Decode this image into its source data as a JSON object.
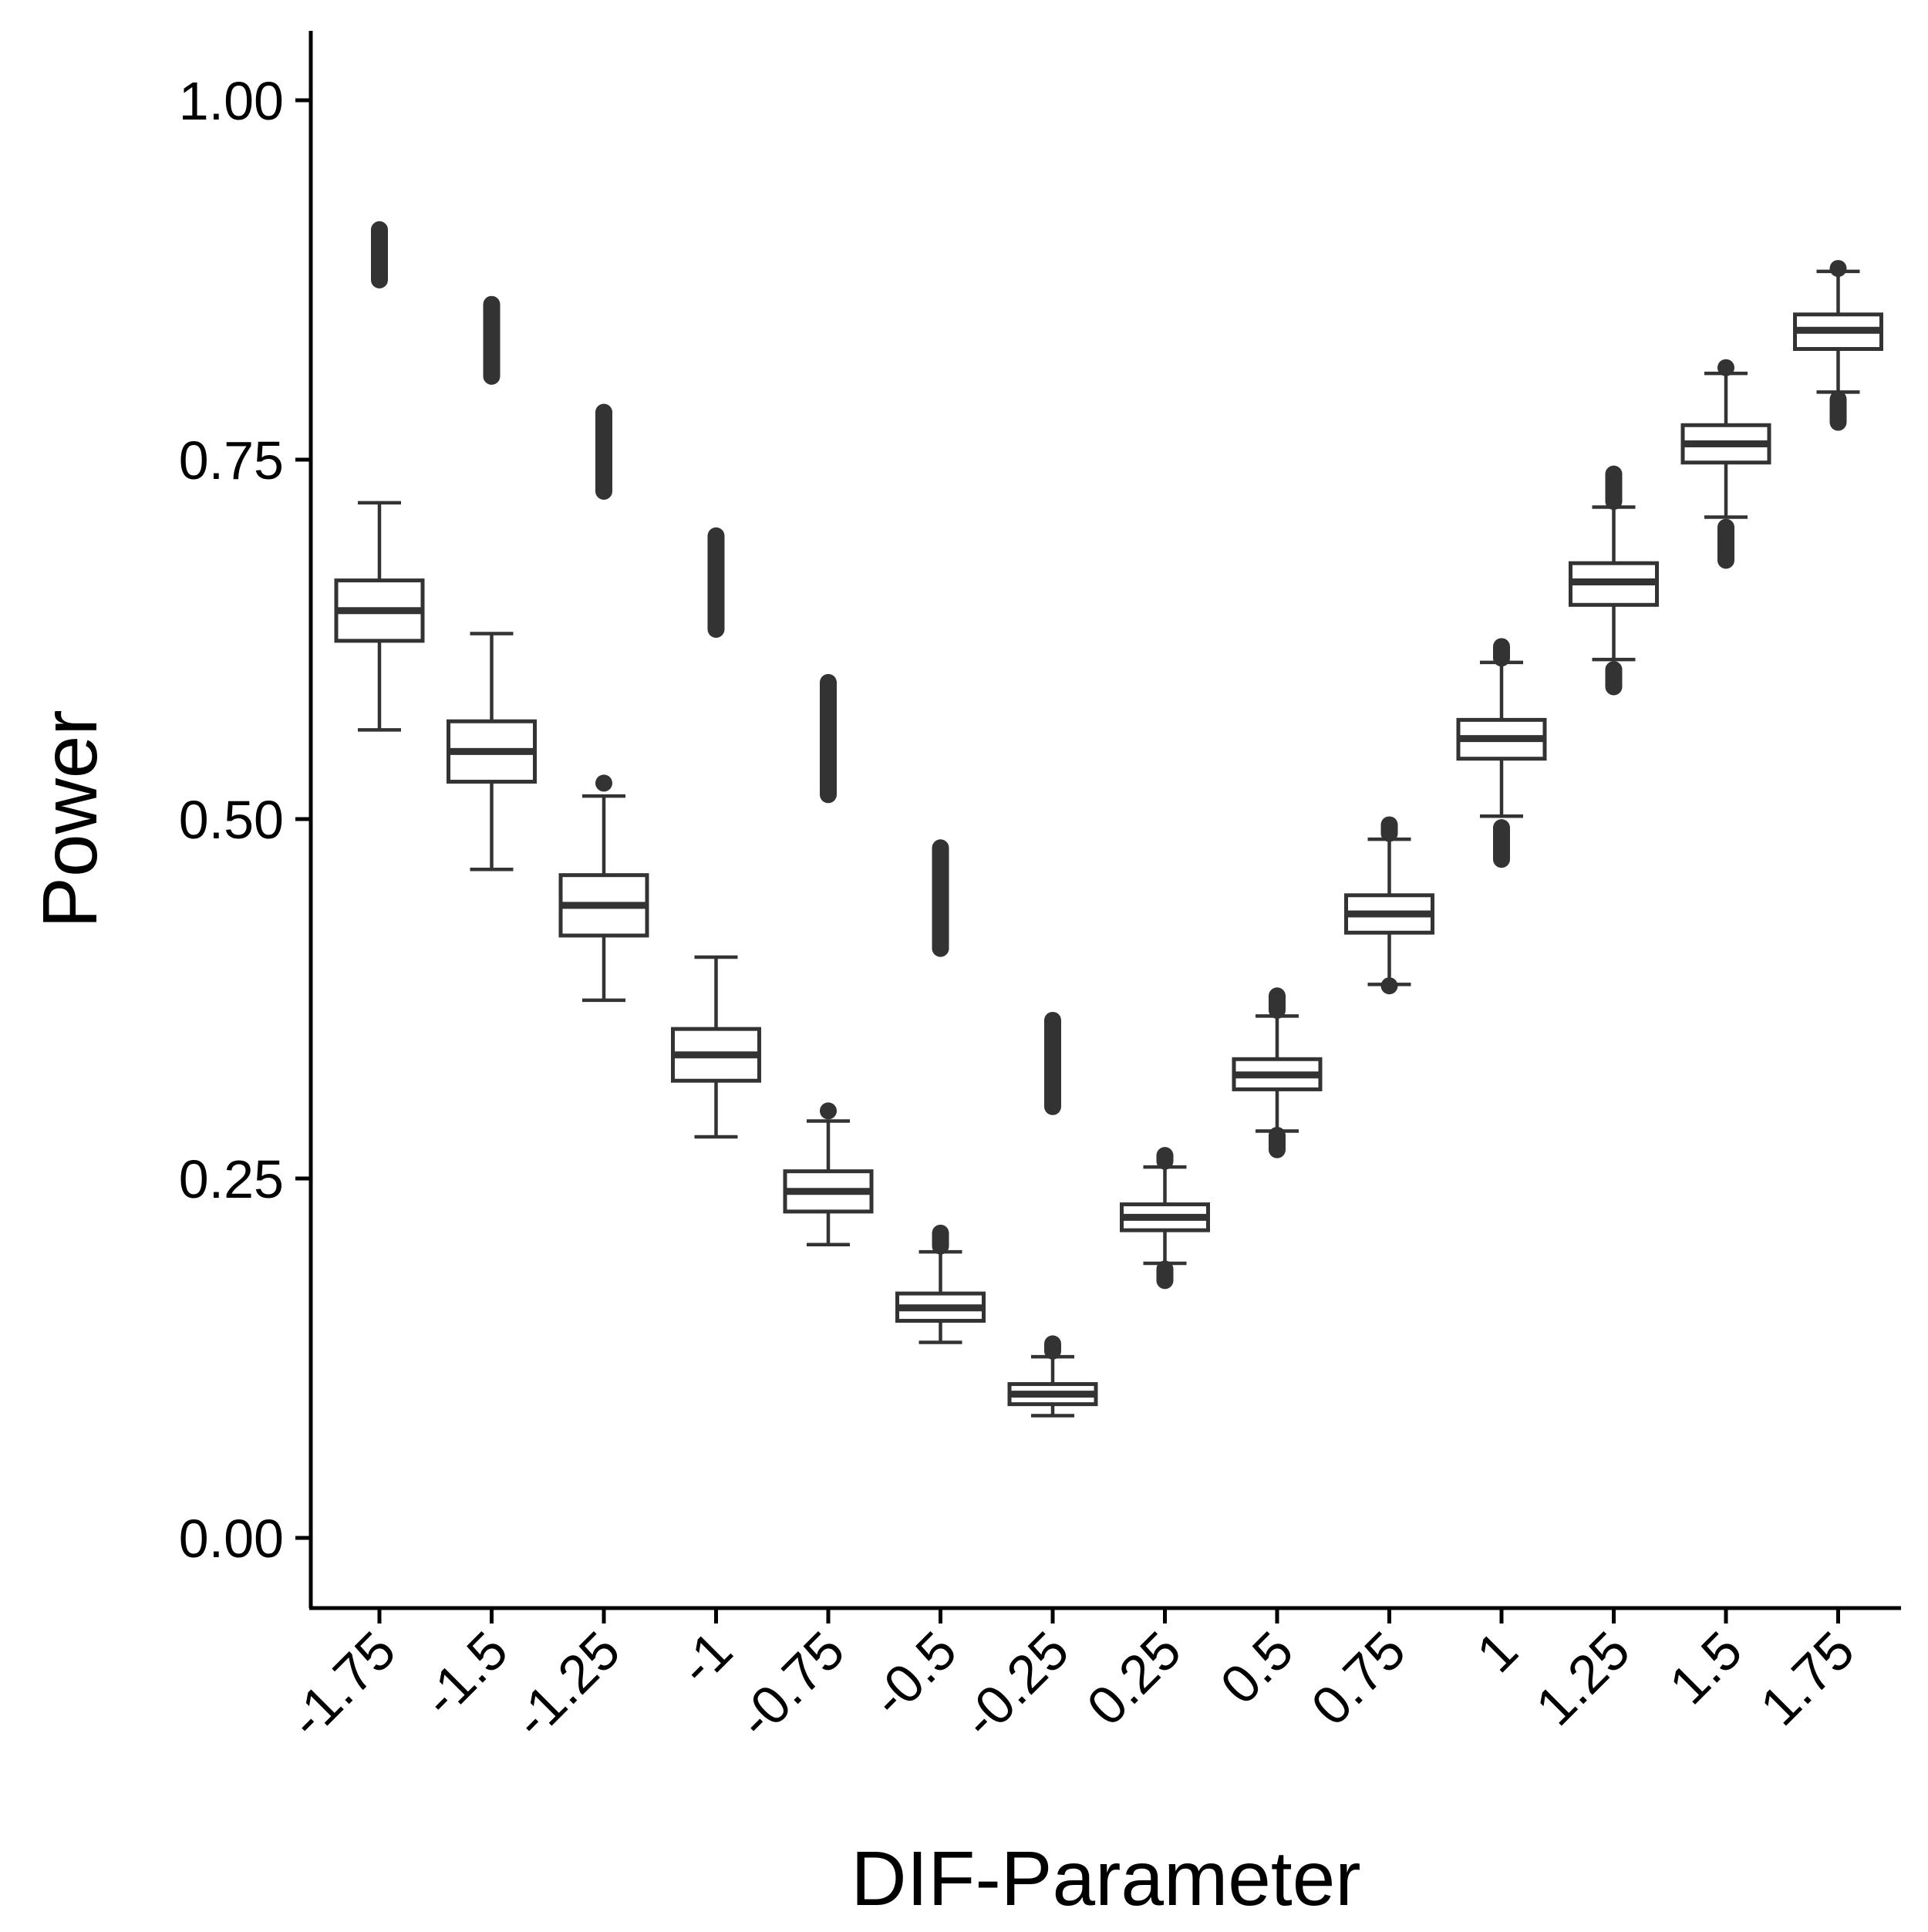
{
  "chart_data": {
    "type": "boxplot",
    "title": "",
    "xlabel": "DIF-Parameter",
    "ylabel": "Power",
    "ylim": [
      -0.05,
      1.05
    ],
    "yticks": [
      "0.00",
      "0.25",
      "0.50",
      "0.75",
      "1.00"
    ],
    "grid": false,
    "legend": "none",
    "categories": [
      "-1.75",
      "-1.5",
      "-1.25",
      "-1",
      "-0.75",
      "-0.5",
      "-0.25",
      "0.25",
      "0.5",
      "0.75",
      "1",
      "1.25",
      "1.5",
      "1.75"
    ],
    "boxes": [
      {
        "x": "-1.75",
        "whisker_low": 0.562,
        "q1": 0.624,
        "median": 0.645,
        "q3": 0.666,
        "whisker_high": 0.72,
        "outlier_low": null,
        "outlier_high": null,
        "outlier_band": [
          0.875,
          0.91
        ]
      },
      {
        "x": "-1.5",
        "whisker_low": 0.465,
        "q1": 0.526,
        "median": 0.547,
        "q3": 0.568,
        "whisker_high": 0.629,
        "outlier_low": null,
        "outlier_high": null,
        "outlier_band": [
          0.808,
          0.858
        ]
      },
      {
        "x": "-1.25",
        "whisker_low": 0.374,
        "q1": 0.419,
        "median": 0.44,
        "q3": 0.461,
        "whisker_high": 0.516,
        "outlier_low": null,
        "outlier_high": [
          0.525,
          0.525
        ],
        "outlier_band": [
          0.728,
          0.783
        ]
      },
      {
        "x": "-1",
        "whisker_low": 0.279,
        "q1": 0.318,
        "median": 0.336,
        "q3": 0.354,
        "whisker_high": 0.404,
        "outlier_low": null,
        "outlier_high": null,
        "outlier_band": [
          0.632,
          0.697
        ]
      },
      {
        "x": "-0.75",
        "whisker_low": 0.204,
        "q1": 0.227,
        "median": 0.241,
        "q3": 0.255,
        "whisker_high": 0.29,
        "outlier_low": null,
        "outlier_high": [
          0.297,
          0.297
        ],
        "outlier_band": [
          0.517,
          0.595
        ]
      },
      {
        "x": "-0.5",
        "whisker_low": 0.136,
        "q1": 0.151,
        "median": 0.16,
        "q3": 0.17,
        "whisker_high": 0.199,
        "outlier_low": null,
        "outlier_high": [
          0.203,
          0.212
        ],
        "outlier_band": [
          0.41,
          0.48
        ]
      },
      {
        "x": "-0.25",
        "whisker_low": 0.085,
        "q1": 0.093,
        "median": 0.1,
        "q3": 0.107,
        "whisker_high": 0.126,
        "outlier_low": null,
        "outlier_high": [
          0.13,
          0.135
        ],
        "outlier_band": [
          0.3,
          0.36
        ]
      },
      {
        "x": "0.25",
        "whisker_low": 0.191,
        "q1": 0.214,
        "median": 0.223,
        "q3": 0.232,
        "whisker_high": 0.258,
        "outlier_low": [
          0.179,
          0.187
        ],
        "outlier_high": [
          0.262,
          0.266
        ],
        "outlier_band": null
      },
      {
        "x": "0.5",
        "whisker_low": 0.283,
        "q1": 0.312,
        "median": 0.322,
        "q3": 0.333,
        "whisker_high": 0.363,
        "outlier_low": [
          0.27,
          0.28
        ],
        "outlier_high": [
          0.367,
          0.377
        ],
        "outlier_band": null
      },
      {
        "x": "0.75",
        "whisker_low": 0.385,
        "q1": 0.421,
        "median": 0.434,
        "q3": 0.447,
        "whisker_high": 0.486,
        "outlier_low": [
          0.384,
          0.384
        ],
        "outlier_high": [
          0.49,
          0.496
        ],
        "outlier_band": null
      },
      {
        "x": "1",
        "whisker_low": 0.502,
        "q1": 0.542,
        "median": 0.556,
        "q3": 0.569,
        "whisker_high": 0.609,
        "outlier_low": [
          0.472,
          0.494
        ],
        "outlier_high": [
          0.612,
          0.62
        ],
        "outlier_band": null
      },
      {
        "x": "1.25",
        "whisker_low": 0.611,
        "q1": 0.649,
        "median": 0.665,
        "q3": 0.678,
        "whisker_high": 0.717,
        "outlier_low": [
          0.592,
          0.604
        ],
        "outlier_high": [
          0.721,
          0.74
        ],
        "outlier_band": null
      },
      {
        "x": "1.5",
        "whisker_low": 0.71,
        "q1": 0.748,
        "median": 0.761,
        "q3": 0.774,
        "whisker_high": 0.81,
        "outlier_low": [
          0.68,
          0.703
        ],
        "outlier_high": [
          0.814,
          0.814
        ],
        "outlier_band": null
      },
      {
        "x": "1.75",
        "whisker_low": 0.797,
        "q1": 0.827,
        "median": 0.84,
        "q3": 0.851,
        "whisker_high": 0.881,
        "outlier_low": [
          0.776,
          0.792
        ],
        "outlier_high": [
          0.883,
          0.883
        ],
        "outlier_band": null
      }
    ]
  }
}
